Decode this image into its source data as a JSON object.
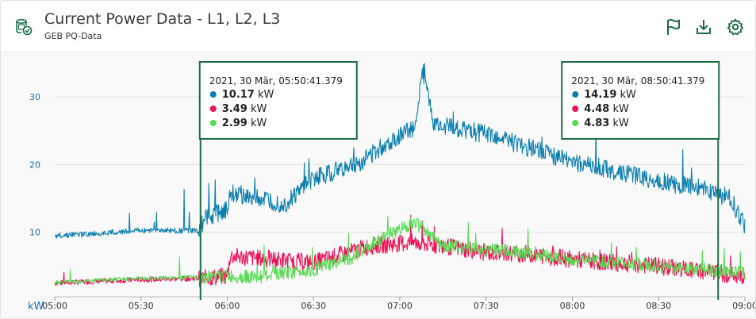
{
  "header": {
    "title": "Current Power Data - L1, L2, L3",
    "subtitle": "GEB PQ-Data",
    "icons": {
      "app": "meter-check-icon",
      "flag": "flag-icon",
      "download": "download-icon",
      "settings": "gear-icon"
    }
  },
  "colors": {
    "accent": "#1b6b45",
    "L1": "#0b7fb0",
    "L2": "#ee0f55",
    "L3": "#58db55"
  },
  "chart_data": {
    "type": "line",
    "ylabel": "kW",
    "y_ticks": [
      10,
      20,
      30
    ],
    "x_ticks": [
      "05:00",
      "05:30",
      "06:00",
      "06:30",
      "07:00",
      "07:30",
      "08:00",
      "08:30",
      "09:00"
    ],
    "x_range": [
      "05:00",
      "09:00"
    ],
    "y_range": [
      0,
      36
    ],
    "grid": true,
    "series": [
      {
        "key": "L1",
        "x": [
          "05:00",
          "05:15",
          "05:30",
          "05:50",
          "05:52",
          "06:00",
          "06:01",
          "06:20",
          "06:30",
          "06:45",
          "06:55",
          "07:05",
          "07:08",
          "07:12",
          "07:30",
          "07:45",
          "08:00",
          "08:15",
          "08:30",
          "08:45",
          "08:55",
          "09:00"
        ],
        "values": [
          9.5,
          9.8,
          10.3,
          10.2,
          11.8,
          13.5,
          16.0,
          14.0,
          18.0,
          20.0,
          23.0,
          25.5,
          34.0,
          26.0,
          24.5,
          22.5,
          20.5,
          19.0,
          17.5,
          16.5,
          15.0,
          11.0
        ]
      },
      {
        "key": "L2",
        "x": [
          "05:00",
          "05:30",
          "05:50",
          "06:00",
          "06:01",
          "06:30",
          "06:50",
          "07:05",
          "07:15",
          "07:30",
          "07:45",
          "08:00",
          "08:30",
          "09:00"
        ],
        "values": [
          2.5,
          3.0,
          3.2,
          3.5,
          6.5,
          5.5,
          8.0,
          8.5,
          8.0,
          7.0,
          6.8,
          6.0,
          5.0,
          3.5
        ]
      },
      {
        "key": "L3",
        "x": [
          "05:00",
          "05:30",
          "05:50",
          "06:00",
          "06:10",
          "06:30",
          "06:45",
          "06:55",
          "07:05",
          "07:15",
          "07:30",
          "07:45",
          "08:00",
          "08:30",
          "09:00"
        ],
        "values": [
          2.6,
          3.2,
          3.4,
          3.5,
          3.4,
          4.5,
          6.5,
          9.5,
          11.5,
          8.0,
          7.5,
          7.0,
          6.0,
          5.0,
          4.0
        ]
      }
    ],
    "tooltips": [
      {
        "time": "05:50:41.379",
        "position": "left",
        "header": "2021, 30 Mär, 05:50:41.379",
        "items": [
          {
            "key": "L1",
            "value": "10.17",
            "unit": "kW"
          },
          {
            "key": "L2",
            "value": "3.49",
            "unit": "kW"
          },
          {
            "key": "L3",
            "value": "2.99",
            "unit": "kW"
          }
        ]
      },
      {
        "time": "08:50:41.379",
        "position": "right",
        "header": "2021, 30 Mär, 08:50:41.379",
        "items": [
          {
            "key": "L1",
            "value": "14.19",
            "unit": "kW"
          },
          {
            "key": "L2",
            "value": "4.48",
            "unit": "kW"
          },
          {
            "key": "L3",
            "value": "4.83",
            "unit": "kW"
          }
        ]
      }
    ]
  }
}
